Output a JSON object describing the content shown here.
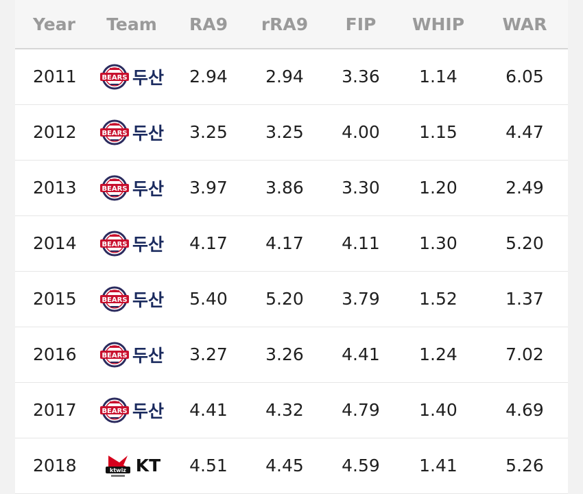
{
  "headers": [
    "Year",
    "Team",
    "RA9",
    "rRA9",
    "FIP",
    "WHIP",
    "WAR"
  ],
  "rows": [
    {
      "year": "2011",
      "team": "두산",
      "team_logo": "doosan-bears",
      "ra9": "2.94",
      "rra9": "2.94",
      "fip": "3.36",
      "whip": "1.14",
      "war": "6.05"
    },
    {
      "year": "2012",
      "team": "두산",
      "team_logo": "doosan-bears",
      "ra9": "3.25",
      "rra9": "3.25",
      "fip": "4.00",
      "whip": "1.15",
      "war": "4.47"
    },
    {
      "year": "2013",
      "team": "두산",
      "team_logo": "doosan-bears",
      "ra9": "3.97",
      "rra9": "3.86",
      "fip": "3.30",
      "whip": "1.20",
      "war": "2.49"
    },
    {
      "year": "2014",
      "team": "두산",
      "team_logo": "doosan-bears",
      "ra9": "4.17",
      "rra9": "4.17",
      "fip": "4.11",
      "whip": "1.30",
      "war": "5.20"
    },
    {
      "year": "2015",
      "team": "두산",
      "team_logo": "doosan-bears",
      "ra9": "5.40",
      "rra9": "5.20",
      "fip": "3.79",
      "whip": "1.52",
      "war": "1.37"
    },
    {
      "year": "2016",
      "team": "두산",
      "team_logo": "doosan-bears",
      "ra9": "3.27",
      "rra9": "3.26",
      "fip": "4.41",
      "whip": "1.24",
      "war": "7.02"
    },
    {
      "year": "2017",
      "team": "두산",
      "team_logo": "doosan-bears",
      "ra9": "4.41",
      "rra9": "4.32",
      "fip": "4.79",
      "whip": "1.40",
      "war": "4.69"
    },
    {
      "year": "2018",
      "team": "KT",
      "team_logo": "kt-wiz",
      "ra9": "4.51",
      "rra9": "4.45",
      "fip": "4.59",
      "whip": "1.41",
      "war": "5.26"
    }
  ],
  "colors": {
    "doosan_text": "#1a2a5e",
    "kt_text": "#111111",
    "header_text": "#9a9a9a"
  }
}
